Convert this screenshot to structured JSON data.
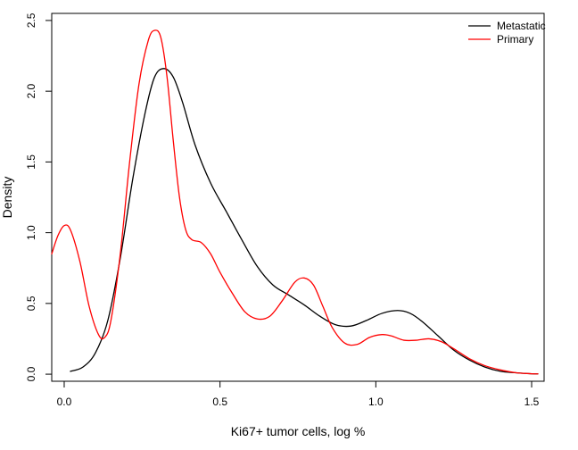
{
  "chart_data": {
    "type": "line",
    "title": "",
    "xlabel": "Ki67+ tumor cells, log %",
    "ylabel": "Density",
    "xlim": [
      -0.04,
      1.54
    ],
    "ylim": [
      -0.05,
      2.55
    ],
    "xticks": [
      0.0,
      0.5,
      1.0,
      1.5
    ],
    "xtick_labels": [
      "0.0",
      "0.5",
      "1.0",
      "1.5"
    ],
    "yticks": [
      0.0,
      0.5,
      1.0,
      1.5,
      2.0,
      2.5
    ],
    "ytick_labels": [
      "0.0",
      "0.5",
      "1.0",
      "1.5",
      "2.0",
      "2.5"
    ],
    "grid": false,
    "legend_position": "top-right",
    "series": [
      {
        "name": "Metastatic",
        "color": "#000000",
        "x": [
          0.02,
          0.06,
          0.1,
          0.14,
          0.18,
          0.22,
          0.26,
          0.29,
          0.32,
          0.35,
          0.38,
          0.42,
          0.47,
          0.52,
          0.57,
          0.62,
          0.67,
          0.72,
          0.77,
          0.82,
          0.87,
          0.92,
          0.97,
          1.02,
          1.07,
          1.11,
          1.15,
          1.2,
          1.25,
          1.3,
          1.35,
          1.4,
          1.45,
          1.5,
          1.52
        ],
        "y": [
          0.02,
          0.05,
          0.15,
          0.38,
          0.82,
          1.38,
          1.85,
          2.1,
          2.16,
          2.1,
          1.92,
          1.62,
          1.35,
          1.15,
          0.95,
          0.76,
          0.63,
          0.56,
          0.49,
          0.41,
          0.35,
          0.34,
          0.38,
          0.43,
          0.45,
          0.43,
          0.37,
          0.27,
          0.17,
          0.1,
          0.05,
          0.02,
          0.01,
          0.003,
          0.002
        ]
      },
      {
        "name": "Primary",
        "color": "#ff0000",
        "x": [
          -0.04,
          -0.02,
          0.0,
          0.02,
          0.05,
          0.08,
          0.11,
          0.13,
          0.15,
          0.18,
          0.21,
          0.24,
          0.27,
          0.29,
          0.31,
          0.33,
          0.35,
          0.37,
          0.39,
          0.41,
          0.44,
          0.47,
          0.5,
          0.54,
          0.58,
          0.62,
          0.66,
          0.7,
          0.74,
          0.77,
          0.8,
          0.83,
          0.86,
          0.9,
          0.94,
          0.98,
          1.02,
          1.05,
          1.09,
          1.13,
          1.17,
          1.21,
          1.25,
          1.3,
          1.35,
          1.4,
          1.45,
          1.5,
          1.52
        ],
        "y": [
          0.85,
          0.98,
          1.05,
          1.02,
          0.8,
          0.48,
          0.28,
          0.26,
          0.38,
          0.85,
          1.5,
          2.05,
          2.36,
          2.43,
          2.38,
          2.1,
          1.65,
          1.25,
          1.02,
          0.95,
          0.93,
          0.85,
          0.72,
          0.57,
          0.44,
          0.39,
          0.41,
          0.52,
          0.65,
          0.68,
          0.63,
          0.48,
          0.33,
          0.22,
          0.21,
          0.26,
          0.28,
          0.27,
          0.24,
          0.24,
          0.25,
          0.23,
          0.18,
          0.11,
          0.06,
          0.03,
          0.01,
          0.003,
          0.002
        ]
      }
    ]
  }
}
